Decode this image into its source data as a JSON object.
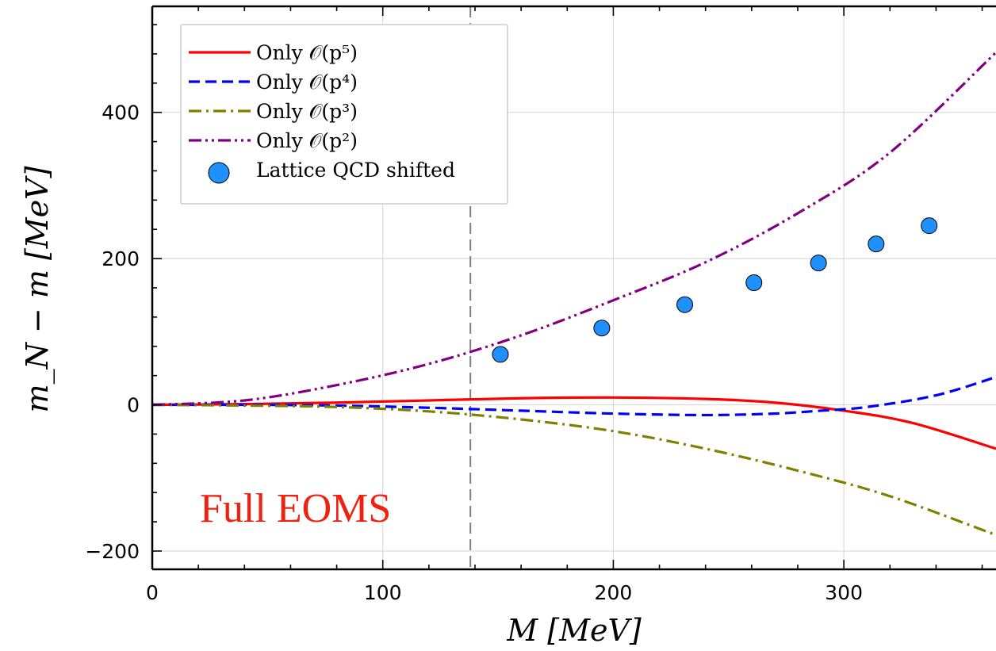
{
  "chart_data": {
    "type": "line",
    "xlabel": "M [MeV]",
    "ylabel": "m_N − m [MeV]",
    "xlim": [
      0,
      366
    ],
    "ylim": [
      -225,
      545
    ],
    "x_ticks": [
      0,
      100,
      200,
      300
    ],
    "x_tick_labels": [
      "0",
      "100",
      "200",
      "300"
    ],
    "y_ticks": [
      -200,
      0,
      200,
      400
    ],
    "y_tick_labels": [
      "−200",
      "0",
      "200",
      "400"
    ],
    "grid": true,
    "legend_position": "top-left",
    "reference_line": {
      "x": 138,
      "style": "dashed",
      "color": "#808080"
    },
    "annotation": {
      "text": "Full EOMS",
      "color": "#ee2211"
    },
    "series": [
      {
        "name": "Only 𝒪(p⁵)",
        "color": "#ff0000",
        "dash": "solid",
        "x": [
          0,
          40,
          80,
          120,
          160,
          200,
          240,
          270,
          300,
          330,
          366
        ],
        "y": [
          0,
          1,
          3,
          6,
          9,
          10,
          8,
          3,
          -8,
          -25,
          -60
        ]
      },
      {
        "name": "Only 𝒪(p⁴)",
        "color": "#0000ff",
        "dash": "dashed",
        "x": [
          0,
          40,
          80,
          120,
          160,
          200,
          240,
          270,
          290,
          310,
          340,
          366
        ],
        "y": [
          0,
          0,
          -1,
          -4,
          -8,
          -12,
          -14,
          -12,
          -8,
          -3,
          13,
          38
        ]
      },
      {
        "name": "Only 𝒪(p³)",
        "color": "#808000",
        "dash": "dashdot",
        "x": [
          0,
          40,
          80,
          120,
          160,
          200,
          240,
          280,
          320,
          366
        ],
        "y": [
          0,
          -1,
          -3,
          -9,
          -20,
          -36,
          -60,
          -90,
          -125,
          -178
        ]
      },
      {
        "name": "Only 𝒪(p²)",
        "color": "#800080",
        "dash": "dashdotdot",
        "x": [
          0,
          40,
          80,
          120,
          160,
          200,
          240,
          280,
          320,
          366
        ],
        "y": [
          0,
          6,
          27,
          56,
          95,
          143,
          195,
          262,
          345,
          482
        ]
      },
      {
        "name": "Lattice QCD shifted",
        "type": "scatter",
        "color": "#2090ff",
        "x": [
          151,
          195,
          231,
          261,
          289,
          314,
          337
        ],
        "y": [
          69,
          105,
          137,
          167,
          194,
          220,
          245
        ],
        "yerr": [
          5,
          5,
          5,
          5,
          5,
          5,
          6
        ]
      }
    ]
  }
}
